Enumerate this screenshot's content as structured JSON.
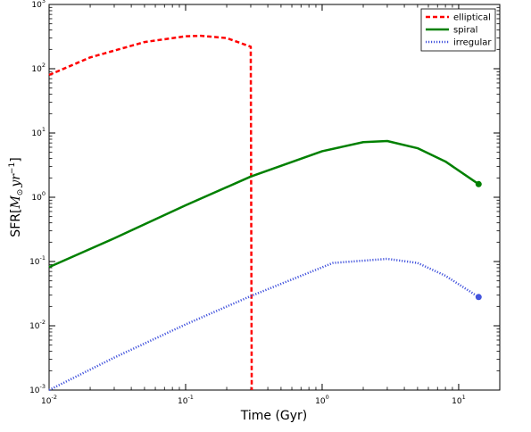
{
  "chart_data": {
    "type": "line",
    "xscale": "log",
    "yscale": "log",
    "xlim": [
      0.01,
      20
    ],
    "ylim": [
      0.001,
      1000
    ],
    "xlabel": "Time (Gyr)",
    "ylabel": {
      "prefix": "SFR",
      "open": "[",
      "unit": "M",
      "sub": "⊙",
      "mid": "yr",
      "sup": "−1",
      "close": "]"
    },
    "x_ticks": [
      {
        "value": 0.01,
        "base": "10",
        "exp": "-2"
      },
      {
        "value": 0.1,
        "base": "10",
        "exp": "-1"
      },
      {
        "value": 1,
        "base": "10",
        "exp": "0"
      },
      {
        "value": 10,
        "base": "10",
        "exp": "1"
      }
    ],
    "y_ticks": [
      {
        "value": 0.001,
        "base": "10",
        "exp": "-3"
      },
      {
        "value": 0.01,
        "base": "10",
        "exp": "-2"
      },
      {
        "value": 0.1,
        "base": "10",
        "exp": "-1"
      },
      {
        "value": 1,
        "base": "10",
        "exp": "0"
      },
      {
        "value": 10,
        "base": "10",
        "exp": "1"
      },
      {
        "value": 100,
        "base": "10",
        "exp": "2"
      },
      {
        "value": 1000,
        "base": "10",
        "exp": "3"
      }
    ],
    "legend_position": "top-right",
    "series": [
      {
        "name": "elliptical",
        "color": "#ff0000",
        "style": "dashed",
        "points": [
          [
            0.01,
            80
          ],
          [
            0.02,
            150
          ],
          [
            0.05,
            260
          ],
          [
            0.1,
            320
          ],
          [
            0.13,
            325
          ],
          [
            0.2,
            300
          ],
          [
            0.3,
            220
          ],
          [
            0.305,
            0.001
          ]
        ]
      },
      {
        "name": "spiral",
        "color": "#008000",
        "style": "solid",
        "points": [
          [
            0.01,
            0.082
          ],
          [
            0.03,
            0.23
          ],
          [
            0.1,
            0.75
          ],
          [
            0.3,
            2.1
          ],
          [
            1,
            5.2
          ],
          [
            2,
            7.2
          ],
          [
            3,
            7.5
          ],
          [
            5,
            5.8
          ],
          [
            8,
            3.6
          ],
          [
            14,
            1.6
          ]
        ],
        "end_marker": [
          14,
          1.6
        ]
      },
      {
        "name": "irregular",
        "color": "#4455dd",
        "style": "dotted",
        "points": [
          [
            0.01,
            0.001
          ],
          [
            0.03,
            0.0032
          ],
          [
            0.1,
            0.0105
          ],
          [
            0.3,
            0.029
          ],
          [
            1.2,
            0.095
          ],
          [
            3,
            0.11
          ],
          [
            5,
            0.095
          ],
          [
            8,
            0.06
          ],
          [
            14,
            0.028
          ]
        ],
        "end_marker": [
          14,
          0.028
        ]
      }
    ]
  }
}
